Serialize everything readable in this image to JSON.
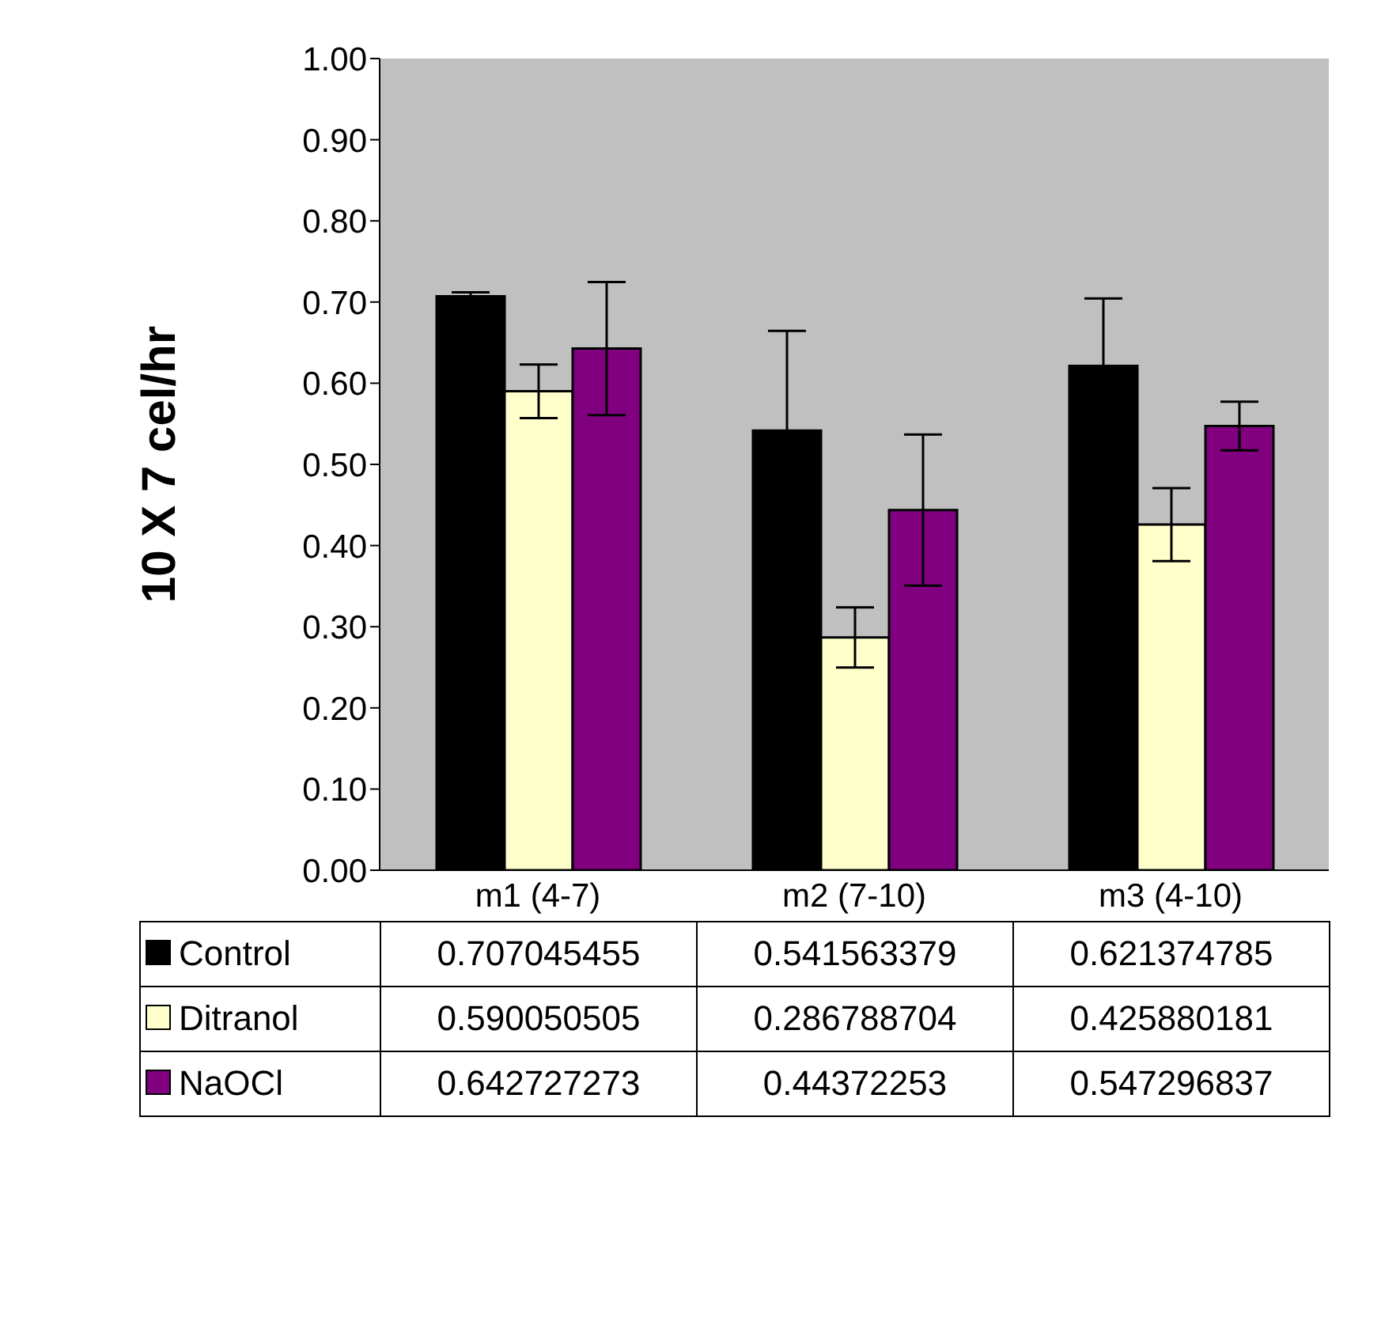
{
  "chart_data": {
    "type": "bar",
    "ylabel": "10 X 7 cel/hr",
    "categories": [
      "m1 (4-7)",
      "m2 (7-10)",
      "m3 (4-10)"
    ],
    "series": [
      {
        "name": "Control",
        "color": "#000000",
        "values": [
          0.707045455,
          0.541563379,
          0.621374785
        ],
        "errors": [
          0.005,
          0.123,
          0.083
        ]
      },
      {
        "name": "Ditranol",
        "color": "#ffffcc",
        "values": [
          0.590050505,
          0.286788704,
          0.425880181
        ],
        "errors": [
          0.033,
          0.037,
          0.045
        ]
      },
      {
        "name": "NaOCl",
        "color": "#800080",
        "values": [
          0.642727273,
          0.44372253,
          0.547296837
        ],
        "errors": [
          0.082,
          0.093,
          0.03
        ]
      }
    ],
    "ylim": [
      0,
      1
    ],
    "yticks": [
      {
        "value": 0,
        "label": "0.00"
      },
      {
        "value": 0.1,
        "label": "0.10"
      },
      {
        "value": 0.2,
        "label": "0.20"
      },
      {
        "value": 0.3,
        "label": "0.30"
      },
      {
        "value": 0.4,
        "label": "0.40"
      },
      {
        "value": 0.5,
        "label": "0.50"
      },
      {
        "value": 0.6,
        "label": "0.60"
      },
      {
        "value": 0.7,
        "label": "0.70"
      },
      {
        "value": 0.8,
        "label": "0.80"
      },
      {
        "value": 0.9,
        "label": "0.90"
      },
      {
        "value": 1,
        "label": "1.00"
      }
    ],
    "data_labels": true,
    "legend": "bottom",
    "grid": false
  }
}
